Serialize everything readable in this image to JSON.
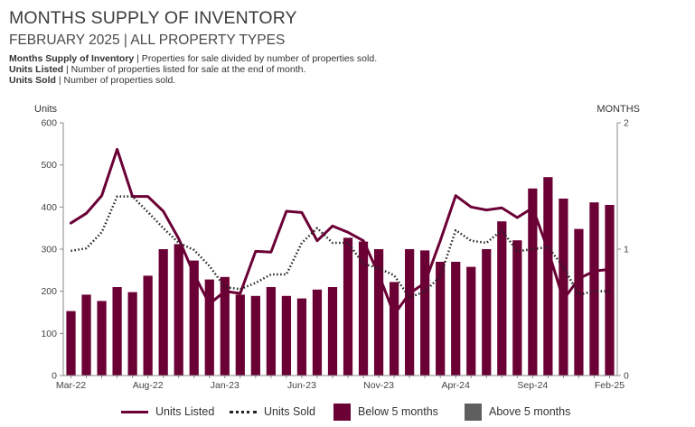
{
  "header": {
    "title": "MONTHS SUPPLY OF INVENTORY",
    "subtitle": "FEBRUARY 2025 | ALL PROPERTY TYPES",
    "definitions": [
      {
        "term": "Months Supply of Inventory",
        "desc": " | Properties for sale divided by number of properties sold."
      },
      {
        "term": "Units Listed",
        "desc": " | Number of properties listed for sale at the end of month."
      },
      {
        "term": "Units Sold",
        "desc": " | Number of properties sold."
      }
    ]
  },
  "colors": {
    "below": "#6b0035",
    "above": "#5f5f5f",
    "listed_line": "#6b0035",
    "sold_line": "#222222",
    "axis": "#888888"
  },
  "chart_data": {
    "type": "bar",
    "y_left_label": "Units",
    "y_right_label": "MONTHS",
    "ylim_left": [
      0,
      600
    ],
    "left_ticks": [
      0,
      100,
      200,
      300,
      400,
      500,
      600
    ],
    "ylim_right": [
      0,
      2
    ],
    "right_ticks": [
      0,
      1,
      2
    ],
    "x_tick_labels": [
      "Mar-22",
      "Aug-22",
      "Jan-23",
      "Jun-23",
      "Nov-23",
      "Apr-24",
      "Sep-24",
      "Feb-25"
    ],
    "x_tick_every": 5,
    "grid": false,
    "legend_position": "bottom",
    "months": [
      "Mar-22",
      "Apr-22",
      "May-22",
      "Jun-22",
      "Jul-22",
      "Aug-22",
      "Sep-22",
      "Oct-22",
      "Nov-22",
      "Dec-22",
      "Jan-23",
      "Feb-23",
      "Mar-23",
      "Apr-23",
      "May-23",
      "Jun-23",
      "Jul-23",
      "Aug-23",
      "Sep-23",
      "Oct-23",
      "Nov-23",
      "Dec-23",
      "Jan-24",
      "Feb-24",
      "Mar-24",
      "Apr-24",
      "May-24",
      "Jun-24",
      "Jul-24",
      "Aug-24",
      "Sep-24",
      "Oct-24",
      "Nov-24",
      "Dec-24",
      "Jan-25",
      "Feb-25"
    ],
    "months_supply": [
      0.51,
      0.64,
      0.59,
      0.7,
      0.66,
      0.79,
      1.0,
      1.04,
      0.91,
      0.76,
      0.78,
      0.64,
      0.63,
      0.7,
      0.63,
      0.61,
      0.68,
      0.7,
      1.09,
      1.06,
      1.0,
      0.74,
      1.0,
      0.99,
      0.9,
      0.9,
      0.86,
      1.0,
      1.22,
      1.07,
      1.48,
      1.57,
      1.4,
      1.16,
      1.37,
      1.35
    ],
    "series": [
      {
        "name": "Units Listed",
        "values": [
          362,
          385,
          427,
          537,
          425,
          425,
          390,
          325,
          240,
          170,
          200,
          195,
          295,
          293,
          390,
          387,
          320,
          355,
          340,
          320,
          240,
          145,
          195,
          220,
          320,
          427,
          400,
          393,
          398,
          375,
          398,
          298,
          180,
          230,
          248,
          252
        ]
      },
      {
        "name": "Units Sold",
        "values": [
          296,
          302,
          340,
          425,
          425,
          388,
          350,
          315,
          298,
          260,
          210,
          205,
          220,
          240,
          240,
          315,
          350,
          315,
          315,
          265,
          255,
          238,
          185,
          200,
          235,
          345,
          320,
          315,
          345,
          295,
          300,
          305,
          258,
          192,
          200,
          200
        ]
      }
    ],
    "legend": [
      "Units Listed",
      "Units Sold",
      "Below 5 months",
      "Above 5 months"
    ]
  }
}
